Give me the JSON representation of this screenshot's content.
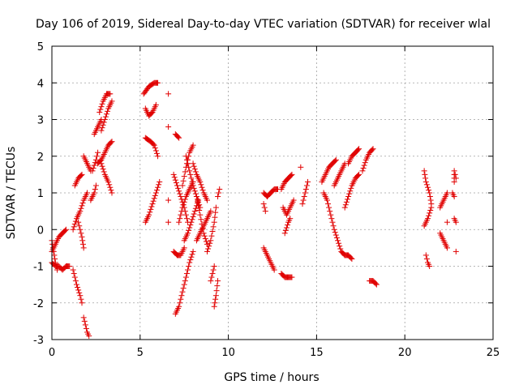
{
  "chart_data": {
    "type": "scatter",
    "title": "Day 106 of 2019, Sidereal Day-to-day VTEC variation (SDTVAR) for receiver wlal",
    "xlabel": "GPS time / hours",
    "ylabel": "SDTVAR / TECUs",
    "xlim": [
      0,
      25
    ],
    "ylim": [
      -3,
      5
    ],
    "xticks": [
      "0",
      "5",
      "10",
      "15",
      "20",
      "25"
    ],
    "yticks": [
      "-3",
      "-2",
      "-1",
      "0",
      "1",
      "2",
      "3",
      "4",
      "5"
    ],
    "grid": true,
    "marker": "plus",
    "color": "#e00000",
    "segments": [
      [
        [
          0.0,
          -0.6
        ],
        [
          0.2,
          -0.4
        ],
        [
          0.4,
          -0.2
        ],
        [
          0.6,
          -0.1
        ],
        [
          0.8,
          0.0
        ]
      ],
      [
        [
          0.0,
          -0.9
        ],
        [
          0.2,
          -1.0
        ],
        [
          0.4,
          -1.0
        ],
        [
          0.6,
          -1.1
        ],
        [
          0.8,
          -1.0
        ],
        [
          1.0,
          -1.0
        ]
      ],
      [
        [
          0.0,
          -0.3
        ],
        [
          0.1,
          -0.6
        ],
        [
          0.2,
          -0.9
        ],
        [
          0.3,
          -1.1
        ]
      ],
      [
        [
          1.2,
          -1.1
        ],
        [
          1.4,
          -1.5
        ],
        [
          1.6,
          -1.8
        ],
        [
          1.7,
          -2.0
        ]
      ],
      [
        [
          1.2,
          0.0
        ],
        [
          1.4,
          0.3
        ],
        [
          1.6,
          0.5
        ],
        [
          1.8,
          0.8
        ],
        [
          2.0,
          1.0
        ]
      ],
      [
        [
          1.3,
          1.2
        ],
        [
          1.5,
          1.4
        ],
        [
          1.7,
          1.5
        ]
      ],
      [
        [
          1.5,
          0.2
        ],
        [
          1.7,
          -0.2
        ],
        [
          1.8,
          -0.5
        ]
      ],
      [
        [
          1.8,
          2.0
        ],
        [
          2.0,
          1.8
        ],
        [
          2.2,
          1.6
        ]
      ],
      [
        [
          1.8,
          -2.4
        ],
        [
          1.9,
          -2.6
        ],
        [
          2.0,
          -2.8
        ],
        [
          2.1,
          -2.9
        ]
      ],
      [
        [
          2.2,
          0.8
        ],
        [
          2.4,
          1.0
        ],
        [
          2.5,
          1.2
        ]
      ],
      [
        [
          2.3,
          1.6
        ],
        [
          2.5,
          1.9
        ],
        [
          2.6,
          2.1
        ]
      ],
      [
        [
          2.4,
          2.6
        ],
        [
          2.6,
          2.8
        ],
        [
          2.8,
          3.0
        ]
      ],
      [
        [
          2.7,
          3.2
        ],
        [
          2.9,
          3.5
        ],
        [
          3.1,
          3.7
        ],
        [
          3.3,
          3.7
        ]
      ],
      [
        [
          2.8,
          2.7
        ],
        [
          3.0,
          3.0
        ],
        [
          3.2,
          3.3
        ],
        [
          3.4,
          3.5
        ]
      ],
      [
        [
          2.6,
          1.8
        ],
        [
          2.8,
          1.9
        ],
        [
          3.0,
          2.1
        ],
        [
          3.2,
          2.3
        ],
        [
          3.4,
          2.4
        ]
      ],
      [
        [
          2.8,
          1.8
        ],
        [
          3.0,
          1.5
        ],
        [
          3.2,
          1.3
        ],
        [
          3.4,
          1.0
        ]
      ],
      [
        [
          5.2,
          3.7
        ],
        [
          5.5,
          3.9
        ],
        [
          5.8,
          4.0
        ],
        [
          6.0,
          4.0
        ]
      ],
      [
        [
          5.3,
          3.3
        ],
        [
          5.5,
          3.1
        ],
        [
          5.7,
          3.2
        ],
        [
          5.9,
          3.4
        ]
      ],
      [
        [
          5.3,
          2.5
        ],
        [
          5.6,
          2.4
        ],
        [
          5.8,
          2.3
        ],
        [
          6.0,
          2.0
        ]
      ],
      [
        [
          5.3,
          0.2
        ],
        [
          5.5,
          0.4
        ],
        [
          5.7,
          0.7
        ],
        [
          5.9,
          1.0
        ],
        [
          6.1,
          1.3
        ]
      ],
      [
        [
          6.6,
          3.7
        ]
      ],
      [
        [
          6.6,
          2.8
        ]
      ],
      [
        [
          6.6,
          0.8
        ]
      ],
      [
        [
          6.6,
          0.2
        ]
      ],
      [
        [
          7.0,
          2.6
        ],
        [
          7.2,
          2.5
        ]
      ],
      [
        [
          6.9,
          1.5
        ],
        [
          7.1,
          1.2
        ],
        [
          7.3,
          0.9
        ],
        [
          7.5,
          0.6
        ],
        [
          7.7,
          0.2
        ]
      ],
      [
        [
          6.9,
          -0.6
        ],
        [
          7.1,
          -0.7
        ],
        [
          7.3,
          -0.7
        ],
        [
          7.5,
          -0.5
        ]
      ],
      [
        [
          7.0,
          -2.3
        ],
        [
          7.2,
          -2.1
        ],
        [
          7.4,
          -1.7
        ],
        [
          7.6,
          -1.3
        ],
        [
          7.8,
          -0.9
        ],
        [
          8.0,
          -0.6
        ]
      ],
      [
        [
          7.2,
          0.2
        ],
        [
          7.4,
          0.6
        ],
        [
          7.6,
          0.9
        ],
        [
          7.8,
          1.1
        ],
        [
          8.0,
          1.3
        ]
      ],
      [
        [
          7.4,
          1.2
        ],
        [
          7.6,
          1.7
        ],
        [
          7.8,
          2.1
        ],
        [
          8.0,
          2.3
        ]
      ],
      [
        [
          7.5,
          -0.3
        ],
        [
          7.7,
          -0.1
        ],
        [
          7.9,
          0.2
        ],
        [
          8.1,
          0.5
        ],
        [
          8.3,
          0.8
        ]
      ],
      [
        [
          7.6,
          2.0
        ],
        [
          7.8,
          1.6
        ],
        [
          8.0,
          1.2
        ],
        [
          8.2,
          0.9
        ],
        [
          8.4,
          0.6
        ]
      ],
      [
        [
          8.0,
          1.8
        ],
        [
          8.2,
          1.5
        ],
        [
          8.4,
          1.3
        ],
        [
          8.6,
          1.0
        ],
        [
          8.8,
          0.8
        ]
      ],
      [
        [
          8.2,
          -0.3
        ],
        [
          8.4,
          -0.1
        ],
        [
          8.6,
          0.1
        ],
        [
          8.8,
          0.3
        ],
        [
          9.0,
          0.5
        ]
      ],
      [
        [
          8.2,
          0.9
        ],
        [
          8.4,
          0.4
        ],
        [
          8.6,
          -0.1
        ],
        [
          8.8,
          -0.4
        ]
      ],
      [
        [
          8.8,
          -0.6
        ],
        [
          9.0,
          -0.3
        ],
        [
          9.2,
          0.2
        ],
        [
          9.3,
          0.6
        ]
      ],
      [
        [
          9.0,
          -1.4
        ],
        [
          9.2,
          -1.0
        ]
      ],
      [
        [
          9.2,
          -2.1
        ],
        [
          9.3,
          -1.8
        ],
        [
          9.4,
          -1.4
        ]
      ],
      [
        [
          9.4,
          0.9
        ],
        [
          9.5,
          1.1
        ]
      ],
      [
        [
          12.0,
          1.0
        ],
        [
          12.2,
          0.9
        ],
        [
          12.4,
          1.0
        ],
        [
          12.6,
          1.1
        ],
        [
          12.8,
          1.1
        ]
      ],
      [
        [
          12.0,
          0.7
        ],
        [
          12.1,
          0.5
        ]
      ],
      [
        [
          12.0,
          -0.5
        ],
        [
          12.2,
          -0.7
        ],
        [
          12.4,
          -0.9
        ],
        [
          12.6,
          -1.1
        ]
      ],
      [
        [
          13.0,
          1.1
        ],
        [
          13.2,
          1.3
        ],
        [
          13.4,
          1.4
        ],
        [
          13.6,
          1.5
        ]
      ],
      [
        [
          13.0,
          -1.2
        ],
        [
          13.2,
          -1.3
        ],
        [
          13.4,
          -1.3
        ],
        [
          13.6,
          -1.3
        ]
      ],
      [
        [
          13.1,
          0.6
        ],
        [
          13.3,
          0.4
        ],
        [
          13.5,
          0.6
        ],
        [
          13.7,
          0.8
        ]
      ],
      [
        [
          13.2,
          -0.1
        ],
        [
          13.4,
          0.2
        ],
        [
          13.5,
          0.3
        ]
      ],
      [
        [
          14.1,
          1.7
        ]
      ],
      [
        [
          14.2,
          0.7
        ],
        [
          14.3,
          0.9
        ],
        [
          14.4,
          1.1
        ],
        [
          14.5,
          1.3
        ]
      ],
      [
        [
          15.3,
          1.3
        ],
        [
          15.5,
          1.5
        ],
        [
          15.7,
          1.7
        ],
        [
          15.9,
          1.8
        ],
        [
          16.1,
          1.9
        ]
      ],
      [
        [
          15.4,
          1.0
        ],
        [
          15.6,
          0.8
        ],
        [
          15.8,
          0.4
        ],
        [
          16.0,
          0.0
        ],
        [
          16.2,
          -0.3
        ],
        [
          16.4,
          -0.6
        ],
        [
          16.6,
          -0.7
        ]
      ],
      [
        [
          16.0,
          1.2
        ],
        [
          16.2,
          1.4
        ],
        [
          16.4,
          1.6
        ],
        [
          16.6,
          1.8
        ]
      ],
      [
        [
          16.8,
          1.8
        ],
        [
          17.0,
          2.0
        ],
        [
          17.2,
          2.1
        ],
        [
          17.4,
          2.2
        ]
      ],
      [
        [
          16.6,
          0.6
        ],
        [
          16.8,
          0.9
        ],
        [
          17.0,
          1.2
        ],
        [
          17.2,
          1.4
        ],
        [
          17.4,
          1.5
        ]
      ],
      [
        [
          17.6,
          1.6
        ],
        [
          17.8,
          1.9
        ],
        [
          18.0,
          2.1
        ],
        [
          18.2,
          2.2
        ]
      ],
      [
        [
          16.6,
          -0.7
        ],
        [
          16.8,
          -0.7
        ],
        [
          17.0,
          -0.8
        ]
      ],
      [
        [
          18.0,
          -1.4
        ],
        [
          18.2,
          -1.4
        ],
        [
          18.4,
          -1.5
        ]
      ],
      [
        [
          21.1,
          1.6
        ],
        [
          21.2,
          1.3
        ],
        [
          21.4,
          1.0
        ],
        [
          21.5,
          0.7
        ]
      ],
      [
        [
          21.1,
          0.1
        ],
        [
          21.3,
          0.3
        ],
        [
          21.5,
          0.6
        ]
      ],
      [
        [
          21.2,
          -0.7
        ],
        [
          21.3,
          -0.9
        ],
        [
          21.4,
          -1.0
        ]
      ],
      [
        [
          22.0,
          0.6
        ],
        [
          22.2,
          0.8
        ],
        [
          22.4,
          1.0
        ]
      ],
      [
        [
          22.0,
          -0.1
        ],
        [
          22.2,
          -0.3
        ],
        [
          22.4,
          -0.5
        ]
      ],
      [
        [
          22.4,
          0.2
        ]
      ],
      [
        [
          22.8,
          1.3
        ],
        [
          22.8,
          1.6
        ],
        [
          22.9,
          1.4
        ]
      ],
      [
        [
          22.7,
          1.0
        ],
        [
          22.8,
          0.9
        ]
      ],
      [
        [
          22.8,
          0.3
        ],
        [
          22.9,
          0.2
        ]
      ],
      [
        [
          22.9,
          -0.6
        ]
      ]
    ]
  }
}
